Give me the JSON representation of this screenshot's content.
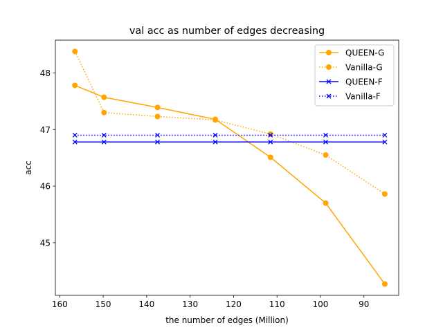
{
  "chart_data": {
    "type": "line",
    "title": "val acc as number of edges decreasing",
    "xlabel": "the number of edges (Million)",
    "ylabel": "acc",
    "xlim": [
      161,
      82
    ],
    "ylim": [
      44.07,
      48.58
    ],
    "x_inverted": true,
    "x_ticks": [
      160,
      150,
      140,
      130,
      120,
      110,
      100,
      90
    ],
    "y_ticks": [
      45,
      46,
      47,
      48
    ],
    "grid": false,
    "legend_position": "top-right",
    "x": [
      156.5,
      149.8,
      137.5,
      124.2,
      111.5,
      98.8,
      85.2
    ],
    "series": [
      {
        "name": "QUEEN-G",
        "color": "#ffa500",
        "linestyle": "solid",
        "marker": "circle",
        "values": [
          47.78,
          47.57,
          47.39,
          47.18,
          46.51,
          45.7,
          44.27
        ]
      },
      {
        "name": "Vanilla-G",
        "color": "#ffa500",
        "linestyle": "dotted",
        "marker": "circle",
        "values": [
          48.38,
          47.3,
          47.23,
          47.17,
          46.92,
          46.55,
          45.86
        ]
      },
      {
        "name": "QUEEN-F",
        "color": "#0000ff",
        "linestyle": "solid",
        "marker": "x",
        "values": [
          46.78,
          46.78,
          46.78,
          46.78,
          46.78,
          46.78,
          46.78
        ]
      },
      {
        "name": "Vanilla-F",
        "color": "#0000ff",
        "linestyle": "dotted",
        "marker": "x",
        "values": [
          46.9,
          46.9,
          46.9,
          46.9,
          46.9,
          46.9,
          46.9
        ]
      }
    ]
  }
}
